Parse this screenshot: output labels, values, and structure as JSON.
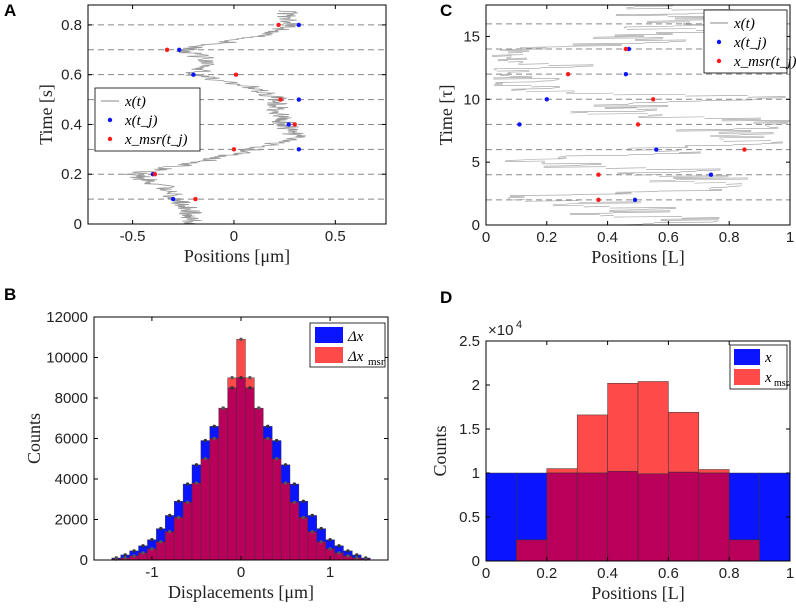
{
  "chart_data": [
    {
      "panel": "A",
      "type": "line",
      "title": "",
      "xlabel": "Positions [μm]",
      "ylabel": "Time [s]",
      "xlim": [
        -0.72,
        0.75
      ],
      "ylim": [
        0,
        0.88
      ],
      "xticks": [
        -0.5,
        0,
        0.5
      ],
      "xtick_labels": [
        "-0.5",
        "0",
        "0.5"
      ],
      "yticks": [
        0,
        0.2,
        0.4,
        0.6,
        0.8
      ],
      "ytick_labels": [
        "0",
        "0.2",
        "0.4",
        "0.6",
        "0.8"
      ],
      "dashed_lines_y": [
        0.1,
        0.2,
        0.3,
        0.4,
        0.5,
        0.6,
        0.7,
        0.8
      ],
      "legend": [
        "x(t)",
        "x(t_j)",
        "x_msr(t_j)"
      ],
      "legend_position": "middle-left",
      "trajectory": {
        "t": [
          0,
          0.05,
          0.1,
          0.15,
          0.2,
          0.25,
          0.3,
          0.35,
          0.4,
          0.45,
          0.5,
          0.55,
          0.6,
          0.65,
          0.7,
          0.75,
          0.8,
          0.86
        ],
        "x": [
          -0.2,
          -0.22,
          -0.28,
          -0.35,
          -0.5,
          -0.15,
          0.1,
          0.3,
          0.25,
          0.22,
          0.22,
          0.08,
          -0.2,
          -0.1,
          -0.25,
          0.1,
          0.3,
          0.25
        ]
      },
      "true_points": {
        "x": [
          -0.3,
          -0.4,
          0.32,
          0.27,
          0.32,
          -0.2,
          -0.27,
          0.32
        ],
        "t": [
          0.1,
          0.2,
          0.3,
          0.4,
          0.5,
          0.6,
          0.7,
          0.8
        ]
      },
      "measured_points": {
        "x": [
          -0.19,
          -0.39,
          0.0,
          0.3,
          0.23,
          0.01,
          -0.33,
          0.22
        ],
        "t": [
          0.1,
          0.2,
          0.3,
          0.4,
          0.5,
          0.6,
          0.7,
          0.8
        ]
      }
    },
    {
      "panel": "C",
      "type": "line",
      "title": "",
      "xlabel": "Positions [L]",
      "ylabel": "Time [τ]",
      "xlim": [
        0,
        1
      ],
      "ylim": [
        0,
        17.5
      ],
      "xticks": [
        0,
        0.2,
        0.4,
        0.6,
        0.8,
        1
      ],
      "xtick_labels": [
        "0",
        "0.2",
        "0.4",
        "0.6",
        "0.8",
        "1"
      ],
      "yticks": [
        0,
        5,
        10,
        15
      ],
      "ytick_labels": [
        "0",
        "5",
        "10",
        "15"
      ],
      "dashed_lines_y": [
        2,
        4,
        6,
        8,
        10,
        12,
        14,
        16
      ],
      "legend": [
        "x(t)",
        "x(t_j)",
        "x_msr(t_j)"
      ],
      "legend_position": "top-right",
      "true_points": {
        "x": [
          0.49,
          0.74,
          0.56,
          0.11,
          0.2,
          0.46,
          0.47
        ],
        "t": [
          2,
          4,
          6,
          8,
          10,
          12,
          14
        ]
      },
      "measured_points": {
        "x": [
          0.37,
          0.37,
          0.85,
          0.5,
          0.55,
          0.27,
          0.46
        ],
        "t": [
          2,
          4,
          6,
          8,
          10,
          12,
          14
        ]
      }
    },
    {
      "panel": "B",
      "type": "bar",
      "title": "",
      "xlabel": "Displacements [μm]",
      "ylabel": "Counts",
      "xlim": [
        -1.65,
        1.65
      ],
      "ylim": [
        0,
        12000
      ],
      "xticks": [
        -1,
        0,
        1
      ],
      "xtick_labels": [
        "-1",
        "0",
        "1"
      ],
      "yticks": [
        0,
        2000,
        4000,
        6000,
        8000,
        10000,
        12000
      ],
      "ytick_labels": [
        "0",
        "2000",
        "4000",
        "6000",
        "8000",
        "10000",
        "12000"
      ],
      "legend": [
        "Δx",
        "Δx_msr"
      ],
      "legend_position": "top-right",
      "bin_centers": [
        -1.4,
        -1.3,
        -1.2,
        -1.1,
        -1.0,
        -0.9,
        -0.8,
        -0.7,
        -0.6,
        -0.5,
        -0.4,
        -0.3,
        -0.2,
        -0.1,
        0.0,
        0.1,
        0.2,
        0.3,
        0.4,
        0.5,
        0.6,
        0.7,
        0.8,
        0.9,
        1.0,
        1.1,
        1.2,
        1.3,
        1.4
      ],
      "series": [
        {
          "name": "Δx",
          "values": [
            100,
            250,
            450,
            700,
            1000,
            1550,
            2200,
            2900,
            3750,
            4700,
            5900,
            6600,
            7500,
            8500,
            9000,
            8500,
            7500,
            6600,
            5900,
            4700,
            3750,
            2900,
            2200,
            1550,
            1000,
            700,
            450,
            250,
            100
          ]
        },
        {
          "name": "Δx_msr",
          "values": [
            50,
            100,
            200,
            350,
            550,
            900,
            1400,
            2100,
            2850,
            3800,
            5000,
            6000,
            7500,
            9000,
            10900,
            9000,
            7500,
            6000,
            5000,
            3800,
            2850,
            2100,
            1400,
            900,
            550,
            350,
            200,
            100,
            50
          ]
        }
      ]
    },
    {
      "panel": "D",
      "type": "bar",
      "title": "",
      "xlabel": "Positions [L]",
      "ylabel": "Counts",
      "multiplier": "×10^4",
      "xlim": [
        0,
        1
      ],
      "ylim": [
        0,
        2.5
      ],
      "xticks": [
        0,
        0.2,
        0.4,
        0.6,
        0.8,
        1
      ],
      "xtick_labels": [
        "0",
        "0.2",
        "0.4",
        "0.6",
        "0.8",
        "1"
      ],
      "yticks": [
        0,
        0.5,
        1,
        1.5,
        2,
        2.5
      ],
      "ytick_labels": [
        "0",
        "0.5",
        "1",
        "1.5",
        "2",
        "2.5"
      ],
      "legend": [
        "x",
        "x_msr"
      ],
      "legend_position": "top-right",
      "bin_centers": [
        0.05,
        0.15,
        0.25,
        0.35,
        0.45,
        0.55,
        0.65,
        0.75,
        0.85,
        0.95
      ],
      "series": [
        {
          "name": "x",
          "values": [
            1.0,
            1.0,
            1.0,
            1.0,
            1.02,
            0.99,
            1.01,
            1.0,
            1.0,
            1.0
          ]
        },
        {
          "name": "x_msr",
          "values": [
            0,
            0.24,
            1.05,
            1.66,
            2.02,
            2.04,
            1.69,
            1.04,
            0.24,
            0
          ]
        }
      ]
    }
  ]
}
